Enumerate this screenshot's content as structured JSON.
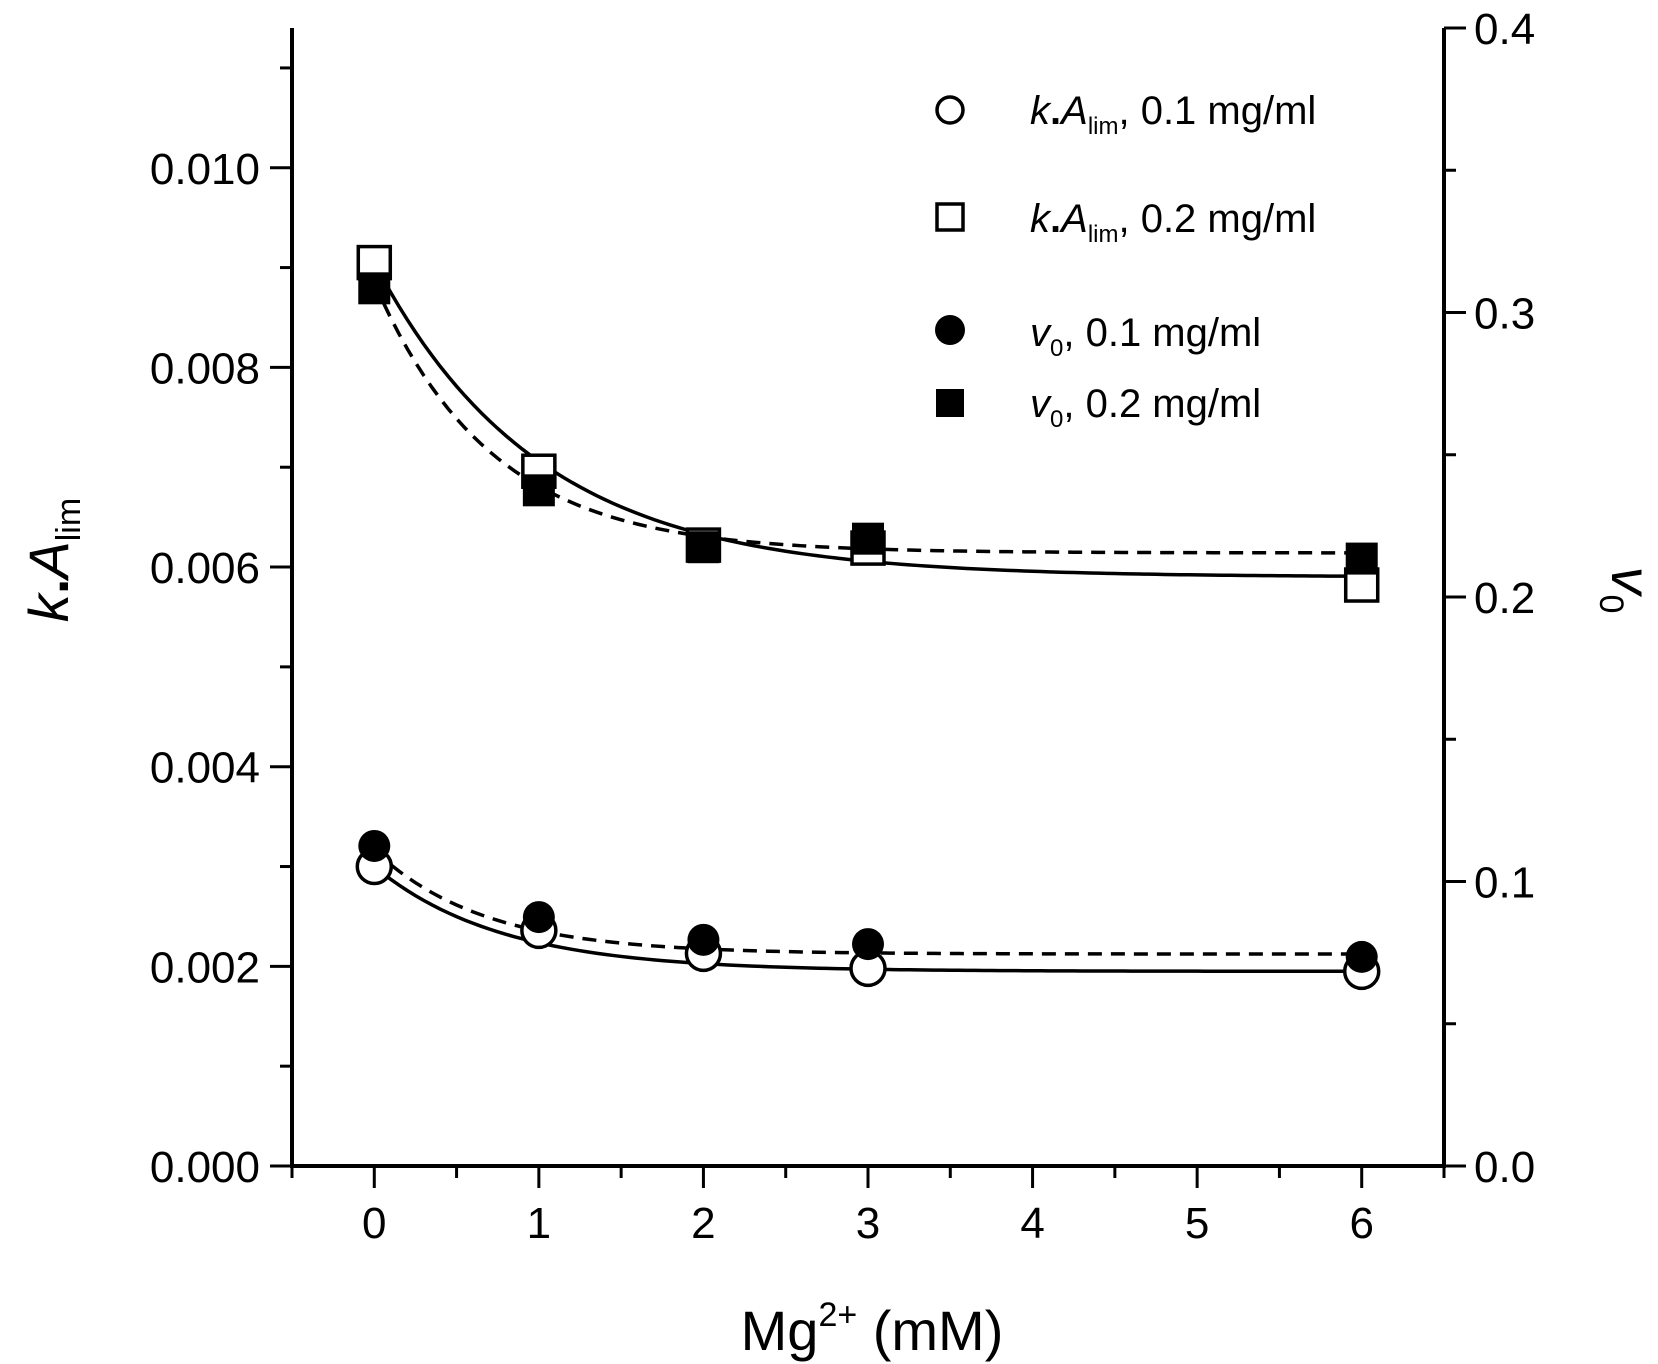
{
  "chart_data": {
    "type": "scatter",
    "title": "",
    "xlabel": {
      "base": "Mg",
      "sup": "2+",
      "unit": " (mM)"
    },
    "ylabel_left": {
      "k": "k",
      "dot": ".",
      "A": "A",
      "sub": "lim"
    },
    "ylabel_right": {
      "v": "v",
      "sub": "0"
    },
    "xlim": [
      -0.5,
      6.5
    ],
    "ylim_left": [
      0,
      0.0114
    ],
    "ylim_right": [
      0,
      0.4
    ],
    "x_ticks": [
      0,
      1,
      2,
      3,
      4,
      5,
      6
    ],
    "x_tick_labels": [
      "0",
      "1",
      "2",
      "3",
      "4",
      "5",
      "6"
    ],
    "y_left_ticks": [
      0,
      0.002,
      0.004,
      0.006,
      0.008,
      0.01
    ],
    "y_left_tick_labels": [
      "0.000",
      "0.002",
      "0.004",
      "0.006",
      "0.008",
      "0.010"
    ],
    "y_right_ticks": [
      0,
      0.1,
      0.2,
      0.3,
      0.4
    ],
    "y_right_tick_labels": [
      "0.0",
      "0.1",
      "0.2",
      "0.3",
      "0.4"
    ],
    "series": [
      {
        "name": "k.A_lim, 0.1 mg/ml",
        "axis": "left",
        "marker": "open-circle",
        "x": [
          0,
          1,
          2,
          3,
          6
        ],
        "y": [
          0.003,
          0.00236,
          0.00213,
          0.00198,
          0.00195
        ]
      },
      {
        "name": "k.A_lim, 0.2 mg/ml",
        "axis": "left",
        "marker": "open-square",
        "x": [
          0,
          1,
          2,
          3,
          6
        ],
        "y": [
          0.00905,
          0.00696,
          0.00622,
          0.00619,
          0.00582
        ]
      },
      {
        "name": "v0, 0.1 mg/ml",
        "axis": "right",
        "marker": "filled-circle",
        "x": [
          0,
          1,
          2,
          3,
          6
        ],
        "y": [
          0.1125,
          0.0875,
          0.0795,
          0.078,
          0.0735
        ]
      },
      {
        "name": "v0, 0.2 mg/ml",
        "axis": "right",
        "marker": "filled-square",
        "x": [
          0,
          1,
          2,
          3,
          6
        ],
        "y": [
          0.3085,
          0.2375,
          0.2175,
          0.2205,
          0.2135
        ]
      }
    ],
    "fits": [
      {
        "name": "fit k.A_lim 0.1 mg/ml",
        "axis": "left",
        "style": "solid",
        "y0": 0.003,
        "yinf": 0.00195,
        "rate": 1.3
      },
      {
        "name": "fit k.A_lim 0.2 mg/ml",
        "axis": "left",
        "style": "solid",
        "y0": 0.00905,
        "yinf": 0.0059,
        "rate": 1.0
      },
      {
        "name": "fit v0 0.1 mg/ml",
        "axis": "right",
        "style": "dashed",
        "y0": 0.111,
        "yinf": 0.0745,
        "rate": 1.5
      },
      {
        "name": "fit v0 0.2 mg/ml",
        "axis": "right",
        "style": "dashed",
        "y0": 0.3105,
        "yinf": 0.2155,
        "rate": 1.4
      }
    ],
    "legend": {
      "placement": "top-right",
      "entries": [
        {
          "marker": "open-circle",
          "symbol": "k",
          "dot": ".",
          "A": "A",
          "sub": "lim",
          "rest": ", 0.1 mg/ml"
        },
        {
          "marker": "open-square",
          "symbol": "k",
          "dot": ".",
          "A": "A",
          "sub": "lim",
          "rest": ", 0.2 mg/ml"
        },
        {
          "marker": "filled-circle",
          "symbol": "v",
          "sub": "0",
          "rest": ", 0.1 mg/ml"
        },
        {
          "marker": "filled-square",
          "symbol": "v",
          "sub": "0",
          "rest": ", 0.2 mg/ml"
        }
      ]
    }
  }
}
